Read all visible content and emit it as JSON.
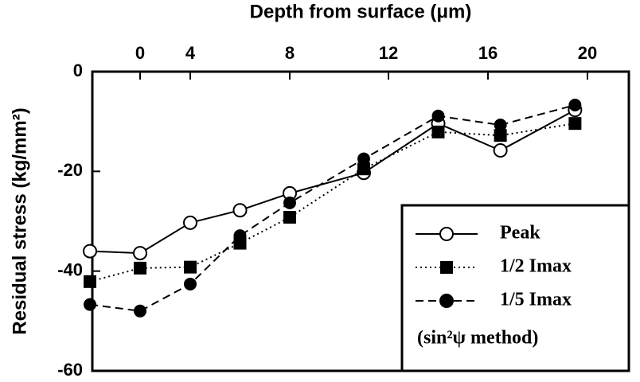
{
  "chart_data": {
    "type": "line",
    "xlabel": "Depth from surface (μm)",
    "ylabel": "Residual stress (kg/mm²)",
    "annotation": "(sin²ψ method)",
    "x": [
      -4,
      0,
      4,
      6,
      8,
      11,
      14,
      16.5,
      19.5
    ],
    "series": [
      {
        "name": "Peak",
        "color": "#000000",
        "marker": "open-circle",
        "dash": "solid",
        "values": [
          -36,
          -36.4,
          -30.3,
          -27.8,
          -24.4,
          -20.3,
          -10.4,
          -15.8,
          -7.7
        ]
      },
      {
        "name": "1/2 Imax",
        "color": "#000000",
        "marker": "square",
        "dash": "dotted",
        "values": [
          -42.1,
          -39.4,
          -39.2,
          -34.4,
          -29.2,
          -19.5,
          -12.1,
          -12.8,
          -10.4
        ]
      },
      {
        "name": "1/5 Imax",
        "color": "#000000",
        "marker": "filled-circle",
        "dash": "dashed",
        "values": [
          -46.7,
          -48,
          -42.6,
          -32.9,
          -26.3,
          -17.5,
          -8.9,
          -10.7,
          -6.7
        ]
      }
    ],
    "xlim": [
      -4,
      21.7
    ],
    "xticks": [
      0,
      4,
      8,
      12,
      16,
      20
    ],
    "ylim": [
      -60,
      0
    ],
    "yticks": [
      0,
      -20,
      -40,
      -60
    ],
    "legend": "lower right",
    "grid": false
  }
}
